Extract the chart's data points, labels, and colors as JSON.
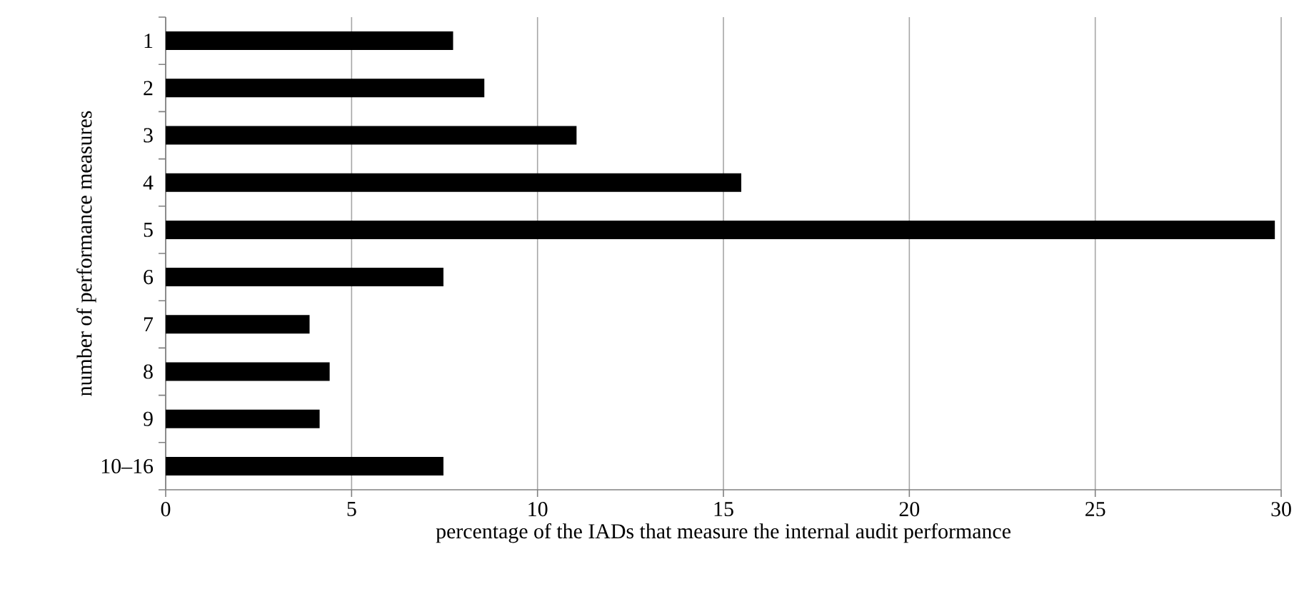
{
  "chart_data": {
    "type": "bar",
    "orientation": "horizontal",
    "xlabel": "percentage of the IADs that measure the internal audit performance",
    "ylabel": "number of performance measures",
    "categories": [
      "1",
      "2",
      "3",
      "4",
      "5",
      "6",
      "7",
      "8",
      "9",
      "10–16"
    ],
    "values": [
      7.73,
      8.57,
      11.05,
      15.48,
      29.83,
      7.47,
      3.87,
      4.41,
      4.14,
      7.47
    ],
    "color": "#000000",
    "xlim": [
      0,
      30
    ],
    "xticks": [
      0,
      5,
      10,
      15,
      20,
      25,
      30
    ],
    "grid": "x"
  }
}
